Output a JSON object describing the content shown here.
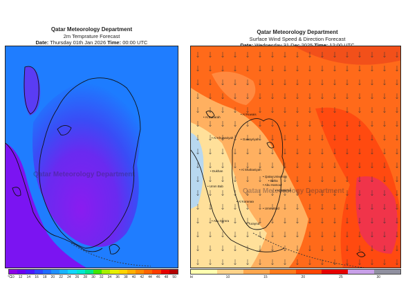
{
  "left": {
    "org": "Qatar Meteorology Department",
    "product": "2m Temprature Forecast",
    "date_label": "Date:",
    "date_value": "Thursday 01th Jan 2026",
    "time_label": "Time:",
    "time_value": "00:00 UTC",
    "watermark": "Qatar Meteorology Department",
    "colorbar_unit": "°C",
    "colorbar_ticks": [
      "10",
      "12",
      "14",
      "16",
      "18",
      "20",
      "22",
      "24",
      "26",
      "28",
      "30",
      "32",
      "34",
      "36",
      "38",
      "40",
      "42",
      "44",
      "46",
      "48",
      "50"
    ],
    "colorbar_colors": [
      "#8a00e6",
      "#6a00f0",
      "#4a18ff",
      "#2f45ff",
      "#1f6bff",
      "#1e90ff",
      "#18b4ff",
      "#12d6ff",
      "#00e6d2",
      "#00e68a",
      "#3ee600",
      "#a6ef00",
      "#e6ef00",
      "#ffd400",
      "#ffb000",
      "#ff8a00",
      "#ff6400",
      "#ff3c00",
      "#e60000",
      "#b40000"
    ]
  },
  "right": {
    "org": "Qatar Meteorology Department",
    "product": "Surface Wind Speed & Direction Forecast",
    "date_label": "Date:",
    "date_value": "Wednesday 31 Dec 2025",
    "time_label": "Time:",
    "time_value": "12:00 UTC",
    "watermark": "Qatar Meteorology Department",
    "colorbar_unit": "kt",
    "colorbar_ticks": [
      "10",
      "15",
      "20",
      "25",
      "30"
    ],
    "colorbar_colors": [
      "#ffffb0",
      "#ffd38a",
      "#ffa64d",
      "#ff7a1a",
      "#ff4400",
      "#e60000",
      "#c8a0e8",
      "#9090a0"
    ],
    "places": [
      {
        "name": "Al Ruwais"
      },
      {
        "name": "Al Khuwariyah"
      },
      {
        "name": "Al Shahaniyah"
      },
      {
        "name": "Qatar University"
      },
      {
        "name": "Doha"
      },
      {
        "name": "Abu Hamour"
      },
      {
        "name": "Al Wakrah"
      },
      {
        "name": "Dukhan"
      },
      {
        "name": "Umm Bab"
      },
      {
        "name": "Al Karanaa"
      },
      {
        "name": "Umm Said"
      },
      {
        "name": "Abu Samra"
      },
      {
        "name": "Turayna"
      },
      {
        "name": "Al Zubarah"
      },
      {
        "name": "Guwayriyah"
      }
    ]
  }
}
